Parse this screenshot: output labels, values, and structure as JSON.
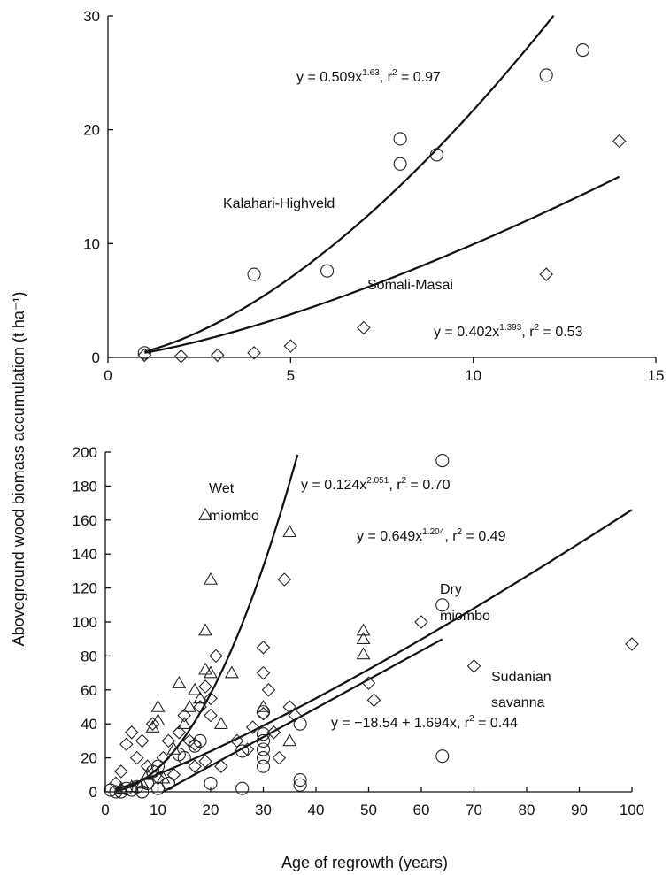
{
  "y_axis_label": "Aboveground wood biomass accumulation (t ha⁻¹)",
  "chart_data": [
    {
      "type": "scatter",
      "title": "",
      "xlabel": "",
      "ylabel": "Aboveground wood biomass accumulation (t ha⁻¹)",
      "xlim": [
        0,
        15
      ],
      "ylim": [
        0,
        30
      ],
      "x_ticks": [
        0,
        5,
        10,
        15
      ],
      "y_ticks": [
        0,
        10,
        20,
        30
      ],
      "grid": false,
      "series": [
        {
          "name": "Kalahari-Highveld",
          "marker": "circle",
          "points": [
            [
              1,
              0.4
            ],
            [
              4,
              7.3
            ],
            [
              6,
              7.6
            ],
            [
              8,
              19.2
            ],
            [
              8,
              17
            ],
            [
              9,
              17.8
            ],
            [
              12,
              24.8
            ],
            [
              13,
              27
            ]
          ]
        },
        {
          "name": "Somali-Masai",
          "marker": "diamond",
          "points": [
            [
              1,
              0.2
            ],
            [
              2,
              0.1
            ],
            [
              3,
              0.2
            ],
            [
              4,
              0.4
            ],
            [
              5,
              1.0
            ],
            [
              7,
              2.6
            ],
            [
              12,
              7.3
            ],
            [
              14,
              19
            ]
          ]
        }
      ],
      "fits": [
        {
          "series": "Kalahari-Highveld",
          "model": "power",
          "a": 0.509,
          "b": 1.63,
          "x_range": [
            1,
            12.2
          ],
          "label_prefix": "y = 0.509x",
          "label_exp": "1.63",
          "label_suffix": ", r",
          "label_r2_exp": "2",
          "label_r2": " = 0.97"
        },
        {
          "series": "Somali-Masai",
          "model": "power",
          "a": 0.402,
          "b": 1.393,
          "x_range": [
            1,
            14
          ],
          "label_prefix": "y = 0.402x",
          "label_exp": "1.393",
          "label_suffix": ", r",
          "label_r2_exp": "2",
          "label_r2": " = 0.53"
        }
      ]
    },
    {
      "type": "scatter",
      "title": "",
      "xlabel": "Age of regrowth (years)",
      "ylabel": "Aboveground wood biomass accumulation (t ha⁻¹)",
      "xlim": [
        0,
        100
      ],
      "ylim": [
        0,
        200
      ],
      "x_ticks": [
        0,
        10,
        20,
        30,
        40,
        50,
        60,
        70,
        80,
        90,
        100
      ],
      "y_ticks": [
        0,
        20,
        40,
        60,
        80,
        100,
        120,
        140,
        160,
        180,
        200
      ],
      "grid": false,
      "series": [
        {
          "name": "Wet miombo",
          "marker": "triangle",
          "points": [
            [
              3,
              2
            ],
            [
              5,
              3
            ],
            [
              7,
              5
            ],
            [
              8,
              10
            ],
            [
              9,
              38
            ],
            [
              10,
              42
            ],
            [
              10,
              50
            ],
            [
              11,
              8
            ],
            [
              13,
              25
            ],
            [
              14,
              64
            ],
            [
              15,
              40
            ],
            [
              16,
              50
            ],
            [
              17,
              60
            ],
            [
              18,
              55
            ],
            [
              19,
              163
            ],
            [
              19,
              95
            ],
            [
              19,
              72
            ],
            [
              20,
              125
            ],
            [
              20,
              70
            ],
            [
              22,
              40
            ],
            [
              24,
              70
            ],
            [
              30,
              50
            ],
            [
              35,
              153
            ],
            [
              35,
              30
            ],
            [
              49,
              95
            ],
            [
              49,
              90
            ],
            [
              49,
              81
            ]
          ]
        },
        {
          "name": "Dry miombo",
          "marker": "diamond",
          "points": [
            [
              2,
              5
            ],
            [
              3,
              12
            ],
            [
              4,
              28
            ],
            [
              5,
              35
            ],
            [
              6,
              20
            ],
            [
              7,
              30
            ],
            [
              8,
              15
            ],
            [
              9,
              40
            ],
            [
              10,
              8
            ],
            [
              11,
              20
            ],
            [
              12,
              30
            ],
            [
              13,
              10
            ],
            [
              14,
              35
            ],
            [
              15,
              45
            ],
            [
              16,
              30
            ],
            [
              17,
              15
            ],
            [
              17,
              28
            ],
            [
              18,
              50
            ],
            [
              19,
              62
            ],
            [
              19,
              18
            ],
            [
              20,
              55
            ],
            [
              20,
              45
            ],
            [
              21,
              80
            ],
            [
              22,
              15
            ],
            [
              25,
              30
            ],
            [
              27,
              25
            ],
            [
              28,
              38
            ],
            [
              30,
              85
            ],
            [
              30,
              70
            ],
            [
              30,
              46
            ],
            [
              31,
              60
            ],
            [
              32,
              35
            ],
            [
              33,
              20
            ],
            [
              34,
              125
            ],
            [
              35,
              50
            ],
            [
              36,
              45
            ],
            [
              50,
              64
            ],
            [
              51,
              54
            ],
            [
              60,
              100
            ],
            [
              70,
              74
            ],
            [
              100,
              87
            ]
          ]
        },
        {
          "name": "Sudanian savanna",
          "marker": "circle",
          "points": [
            [
              1,
              1
            ],
            [
              2,
              0
            ],
            [
              3,
              0
            ],
            [
              4,
              2
            ],
            [
              5,
              1
            ],
            [
              6,
              3
            ],
            [
              7,
              0
            ],
            [
              8,
              5
            ],
            [
              9,
              12
            ],
            [
              10,
              15
            ],
            [
              10,
              2
            ],
            [
              12,
              5
            ],
            [
              14,
              22
            ],
            [
              15,
              20
            ],
            [
              17,
              27
            ],
            [
              18,
              30
            ],
            [
              20,
              5
            ],
            [
              26,
              24
            ],
            [
              26,
              2
            ],
            [
              30,
              47
            ],
            [
              30,
              34
            ],
            [
              30,
              30
            ],
            [
              30,
              25
            ],
            [
              30,
              20
            ],
            [
              30,
              15
            ],
            [
              37,
              40
            ],
            [
              37,
              7
            ],
            [
              37,
              4
            ],
            [
              64,
              195
            ],
            [
              64,
              110
            ],
            [
              64,
              21
            ]
          ]
        }
      ],
      "fits": [
        {
          "series": "Wet miombo",
          "model": "power",
          "a": 0.124,
          "b": 2.051,
          "x_range": [
            2,
            36.5
          ],
          "label_prefix": "y = 0.124x",
          "label_exp": "2.051",
          "label_suffix": ", r",
          "label_r2_exp": "2",
          "label_r2": " = 0.70"
        },
        {
          "series": "Dry miombo",
          "model": "power",
          "a": 0.649,
          "b": 1.204,
          "x_range": [
            2,
            100
          ],
          "label_prefix": "y = 0.649x",
          "label_exp": "1.204",
          "label_suffix": ", r",
          "label_r2_exp": "2",
          "label_r2": " = 0.49"
        },
        {
          "series": "Sudanian savanna",
          "model": "linear",
          "intercept": -18.54,
          "slope": 1.694,
          "x_range": [
            10.94,
            64
          ],
          "label_prefix": "y = −18.54 + 1.694x, r",
          "label_exp": "",
          "label_suffix": "",
          "label_r2_exp": "2",
          "label_r2": " = 0.44"
        }
      ]
    }
  ]
}
